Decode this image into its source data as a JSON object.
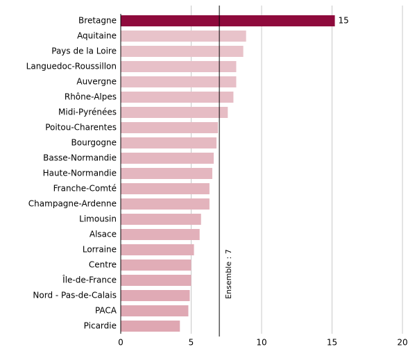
{
  "chart_data": {
    "type": "barh",
    "categories": [
      "Bretagne",
      "Aquitaine",
      "Pays de la Loire",
      "Languedoc-Roussillon",
      "Auvergne",
      "Rhône-Alpes",
      "Midi-Pyrénées",
      "Poitou-Charentes",
      "Bourgogne",
      "Basse-Normandie",
      "Haute-Normandie",
      "Franche-Comté",
      "Champagne-Ardenne",
      "Limousin",
      "Alsace",
      "Lorraine",
      "Centre",
      "Île-de-France",
      "Nord - Pas-de-Calais",
      "PACA",
      "Picardie"
    ],
    "values": [
      15.2,
      8.9,
      8.7,
      8.2,
      8.2,
      8.0,
      7.6,
      6.9,
      6.8,
      6.6,
      6.5,
      6.3,
      6.3,
      5.7,
      5.6,
      5.2,
      5.0,
      5.0,
      4.9,
      4.8,
      4.2
    ],
    "value_labels": [
      "15",
      null,
      null,
      null,
      null,
      null,
      null,
      null,
      null,
      null,
      null,
      null,
      null,
      null,
      null,
      null,
      null,
      null,
      null,
      null,
      null
    ],
    "colors": [
      "#8e0a3c",
      "#e8c3ca",
      "#e8c2c9",
      "#e7c0c8",
      "#e7bfc7",
      "#e6bdc5",
      "#e6bcc4",
      "#e5bac2",
      "#e5b9c1",
      "#e4b7c0",
      "#e4b6bf",
      "#e3b4bd",
      "#e3b3bc",
      "#e2b1bb",
      "#e2b0ba",
      "#e1aeb8",
      "#e1adb7",
      "#e0abb6",
      "#e0aab5",
      "#dfa8b3",
      "#dfa7b2"
    ],
    "xlim": [
      0,
      20
    ],
    "xticks": [
      0,
      5,
      10,
      15,
      20
    ],
    "grid": true,
    "reference": {
      "value": 7,
      "label": "Ensemble : 7"
    }
  }
}
